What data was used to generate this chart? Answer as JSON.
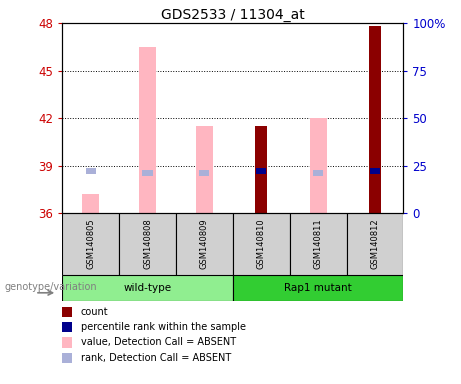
{
  "title": "GDS2533 / 11304_at",
  "samples": [
    "GSM140805",
    "GSM140808",
    "GSM140809",
    "GSM140810",
    "GSM140811",
    "GSM140812"
  ],
  "ylim_left": [
    36,
    48
  ],
  "ylim_right": [
    0,
    100
  ],
  "yticks_left": [
    36,
    39,
    42,
    45,
    48
  ],
  "yticks_right": [
    0,
    25,
    50,
    75,
    100
  ],
  "ytick_labels_right": [
    "0",
    "25",
    "50",
    "75",
    "100%"
  ],
  "absent_value_tops": [
    37.2,
    46.5,
    41.5,
    null,
    42.0,
    null
  ],
  "absent_rank_centers": [
    38.65,
    38.55,
    38.55,
    null,
    38.55,
    null
  ],
  "count_tops": [
    null,
    null,
    null,
    41.5,
    null,
    47.8
  ],
  "percentile_rank_centers": [
    null,
    null,
    null,
    38.65,
    null,
    38.65
  ],
  "absent_value_color": "#ffb6c1",
  "absent_rank_color": "#aab0d8",
  "count_color": "#8b0000",
  "percentile_color": "#00008b",
  "grid_yticks": [
    39,
    42,
    45
  ],
  "ylabel_left_color": "#cc0000",
  "ylabel_right_color": "#0000cc",
  "wt_color": "#90ee90",
  "rap_color": "#32cd32",
  "legend_items": [
    {
      "label": "count",
      "color": "#8b0000"
    },
    {
      "label": "percentile rank within the sample",
      "color": "#00008b"
    },
    {
      "label": "value, Detection Call = ABSENT",
      "color": "#ffb6c1"
    },
    {
      "label": "rank, Detection Call = ABSENT",
      "color": "#aab0d8"
    }
  ],
  "genotype_label": "genotype/variation"
}
